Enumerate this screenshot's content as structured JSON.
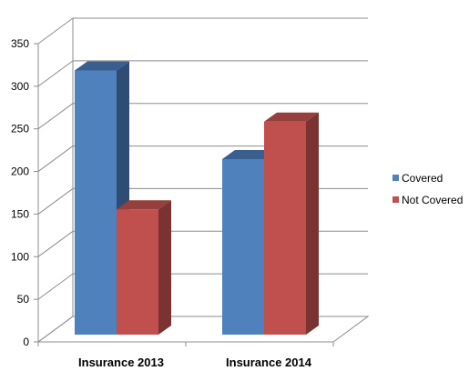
{
  "chart_data": {
    "type": "bar",
    "categories": [
      "Insurance 2013",
      "Insurance 2014"
    ],
    "series": [
      {
        "name": "Covered",
        "values": [
          310,
          206
        ]
      },
      {
        "name": "Not Covered",
        "values": [
          147,
          250
        ]
      }
    ],
    "yticks": [
      "0",
      "50",
      "100",
      "150",
      "200",
      "250",
      "300",
      "350"
    ],
    "ylim": [
      0,
      350
    ],
    "grid": true,
    "legend_position": "right",
    "three_d": true,
    "colors": {
      "Covered": {
        "front": "#4F81BD",
        "top": "#3A5F8E",
        "side": "#2F4D74"
      },
      "Not Covered": {
        "front": "#C0504D",
        "top": "#95403C",
        "side": "#7A3331"
      },
      "grid": "#8C8C8C",
      "axis": "#8C8C8C"
    }
  }
}
